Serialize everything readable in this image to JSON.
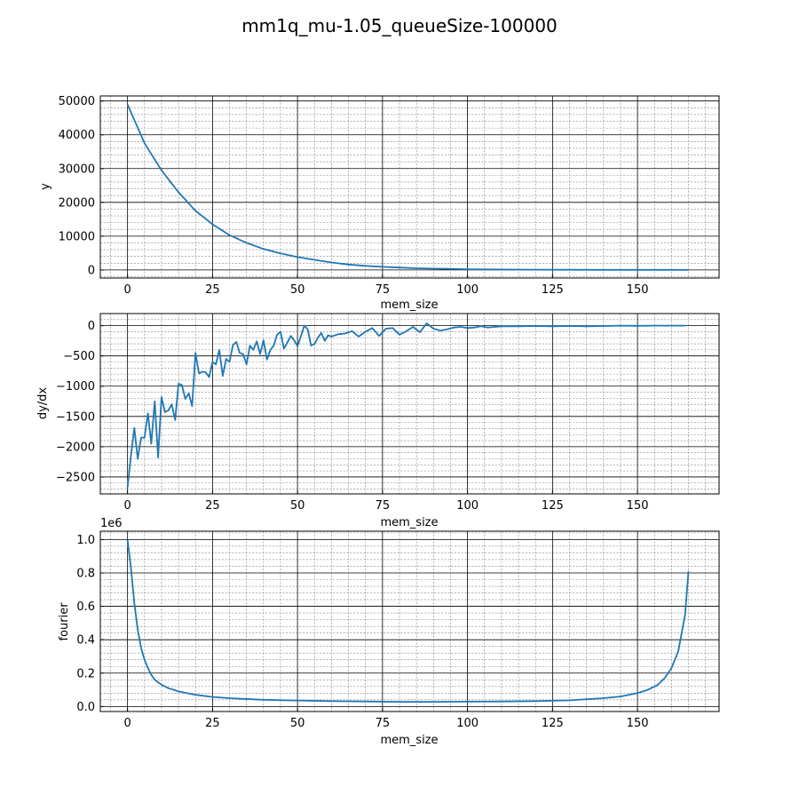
{
  "figure": {
    "title": "mm1q_mu-1.05_queueSize-100000"
  },
  "chart_data": [
    {
      "type": "line",
      "xlabel": "mem_size",
      "ylabel": "y",
      "xlim": [
        -8,
        174
      ],
      "ylim": [
        -2400,
        51500
      ],
      "xticks": [
        0,
        25,
        50,
        75,
        100,
        125,
        150
      ],
      "yticks": [
        0,
        10000,
        20000,
        30000,
        40000,
        50000
      ],
      "ytick_labels": [
        "0",
        "10000",
        "20000",
        "30000",
        "40000",
        "50000"
      ],
      "grid": "major solid black, minor dashed gray",
      "series": [
        {
          "color": "#1f77b4",
          "x": [
            0,
            5,
            10,
            15,
            20,
            25,
            30,
            35,
            40,
            45,
            50,
            55,
            60,
            65,
            70,
            75,
            80,
            85,
            90,
            95,
            100,
            110,
            120,
            130,
            140,
            150,
            160,
            165
          ],
          "y": [
            49000,
            37500,
            29500,
            23000,
            17500,
            13500,
            10300,
            8000,
            6200,
            4900,
            3800,
            3000,
            2200,
            1600,
            1200,
            900,
            700,
            500,
            400,
            300,
            200,
            120,
            80,
            50,
            30,
            20,
            10,
            0
          ]
        }
      ]
    },
    {
      "type": "line",
      "xlabel": "mem_size",
      "ylabel": "dy/dx",
      "xlim": [
        -8,
        174
      ],
      "ylim": [
        -2780,
        200
      ],
      "xticks": [
        0,
        25,
        50,
        75,
        100,
        125,
        150
      ],
      "yticks": [
        -2500,
        -2000,
        -1500,
        -1000,
        -500,
        0
      ],
      "ytick_labels": [
        "−2500",
        "−2000",
        "−1500",
        "−1000",
        "−500",
        "0"
      ],
      "grid": "major solid black, minor dashed gray",
      "series": [
        {
          "color": "#1f77b4",
          "x": [
            0,
            1,
            2,
            3,
            4,
            5,
            6,
            7,
            8,
            9,
            10,
            11,
            12,
            13,
            14,
            15,
            16,
            17,
            18,
            19,
            20,
            21,
            22,
            23,
            24,
            25,
            26,
            27,
            28,
            29,
            30,
            31,
            32,
            33,
            34,
            35,
            36,
            37,
            38,
            39,
            40,
            41,
            42,
            43,
            44,
            45,
            46,
            47,
            48,
            49,
            50,
            51,
            52,
            53,
            54,
            55,
            56,
            57,
            58,
            59,
            60,
            62,
            64,
            66,
            68,
            70,
            72,
            74,
            76,
            78,
            80,
            82,
            84,
            86,
            88,
            90,
            92,
            94,
            96,
            98,
            100,
            102,
            104,
            106,
            108,
            110,
            115,
            120,
            125,
            130,
            135,
            140,
            145,
            150,
            155,
            160,
            164
          ],
          "y": [
            -2680,
            -2150,
            -1690,
            -2200,
            -1850,
            -1850,
            -1450,
            -1950,
            -1250,
            -2180,
            -1180,
            -1430,
            -1400,
            -1300,
            -1560,
            -960,
            -980,
            -1210,
            -1120,
            -1330,
            -450,
            -790,
            -760,
            -770,
            -850,
            -600,
            -640,
            -400,
            -830,
            -550,
            -600,
            -320,
            -270,
            -450,
            -470,
            -640,
            -330,
            -400,
            -260,
            -470,
            -240,
            -560,
            -400,
            -330,
            -150,
            -100,
            -380,
            -280,
            -170,
            -240,
            -340,
            -170,
            0,
            -60,
            -330,
            -300,
            -200,
            -120,
            -250,
            -160,
            -180,
            -140,
            -130,
            -90,
            -180,
            -100,
            -40,
            -170,
            -50,
            -40,
            -150,
            -90,
            -20,
            -110,
            40,
            -50,
            -80,
            -60,
            -30,
            -20,
            -40,
            -30,
            -10,
            -30,
            -20,
            -10,
            -10,
            -5,
            -10,
            -5,
            -10,
            -5,
            0,
            -2,
            0,
            0,
            0
          ]
        }
      ]
    },
    {
      "type": "line",
      "xlabel": "mem_size",
      "ylabel": "fourier",
      "offset_label": "1e6",
      "xlim": [
        -8,
        174
      ],
      "ylim": [
        -0.03,
        1.05
      ],
      "xticks": [
        0,
        25,
        50,
        75,
        100,
        125,
        150
      ],
      "yticks": [
        0.0,
        0.2,
        0.4,
        0.6,
        0.8,
        1.0
      ],
      "ytick_labels": [
        "0.0",
        "0.2",
        "0.4",
        "0.6",
        "0.8",
        "1.0"
      ],
      "grid": "major solid black, minor dashed gray",
      "series": [
        {
          "color": "#1f77b4",
          "x": [
            0,
            1,
            2,
            3,
            4,
            5,
            6,
            7,
            8,
            10,
            12,
            15,
            20,
            25,
            30,
            40,
            50,
            60,
            70,
            80,
            90,
            100,
            110,
            120,
            130,
            140,
            145,
            150,
            153,
            156,
            158,
            160,
            162,
            164,
            165
          ],
          "y": [
            1.0,
            0.83,
            0.62,
            0.46,
            0.35,
            0.28,
            0.23,
            0.19,
            0.16,
            0.13,
            0.11,
            0.09,
            0.07,
            0.057,
            0.05,
            0.04,
            0.036,
            0.032,
            0.03,
            0.028,
            0.028,
            0.029,
            0.03,
            0.032,
            0.037,
            0.05,
            0.06,
            0.08,
            0.1,
            0.13,
            0.17,
            0.23,
            0.33,
            0.55,
            0.81
          ]
        }
      ]
    }
  ]
}
